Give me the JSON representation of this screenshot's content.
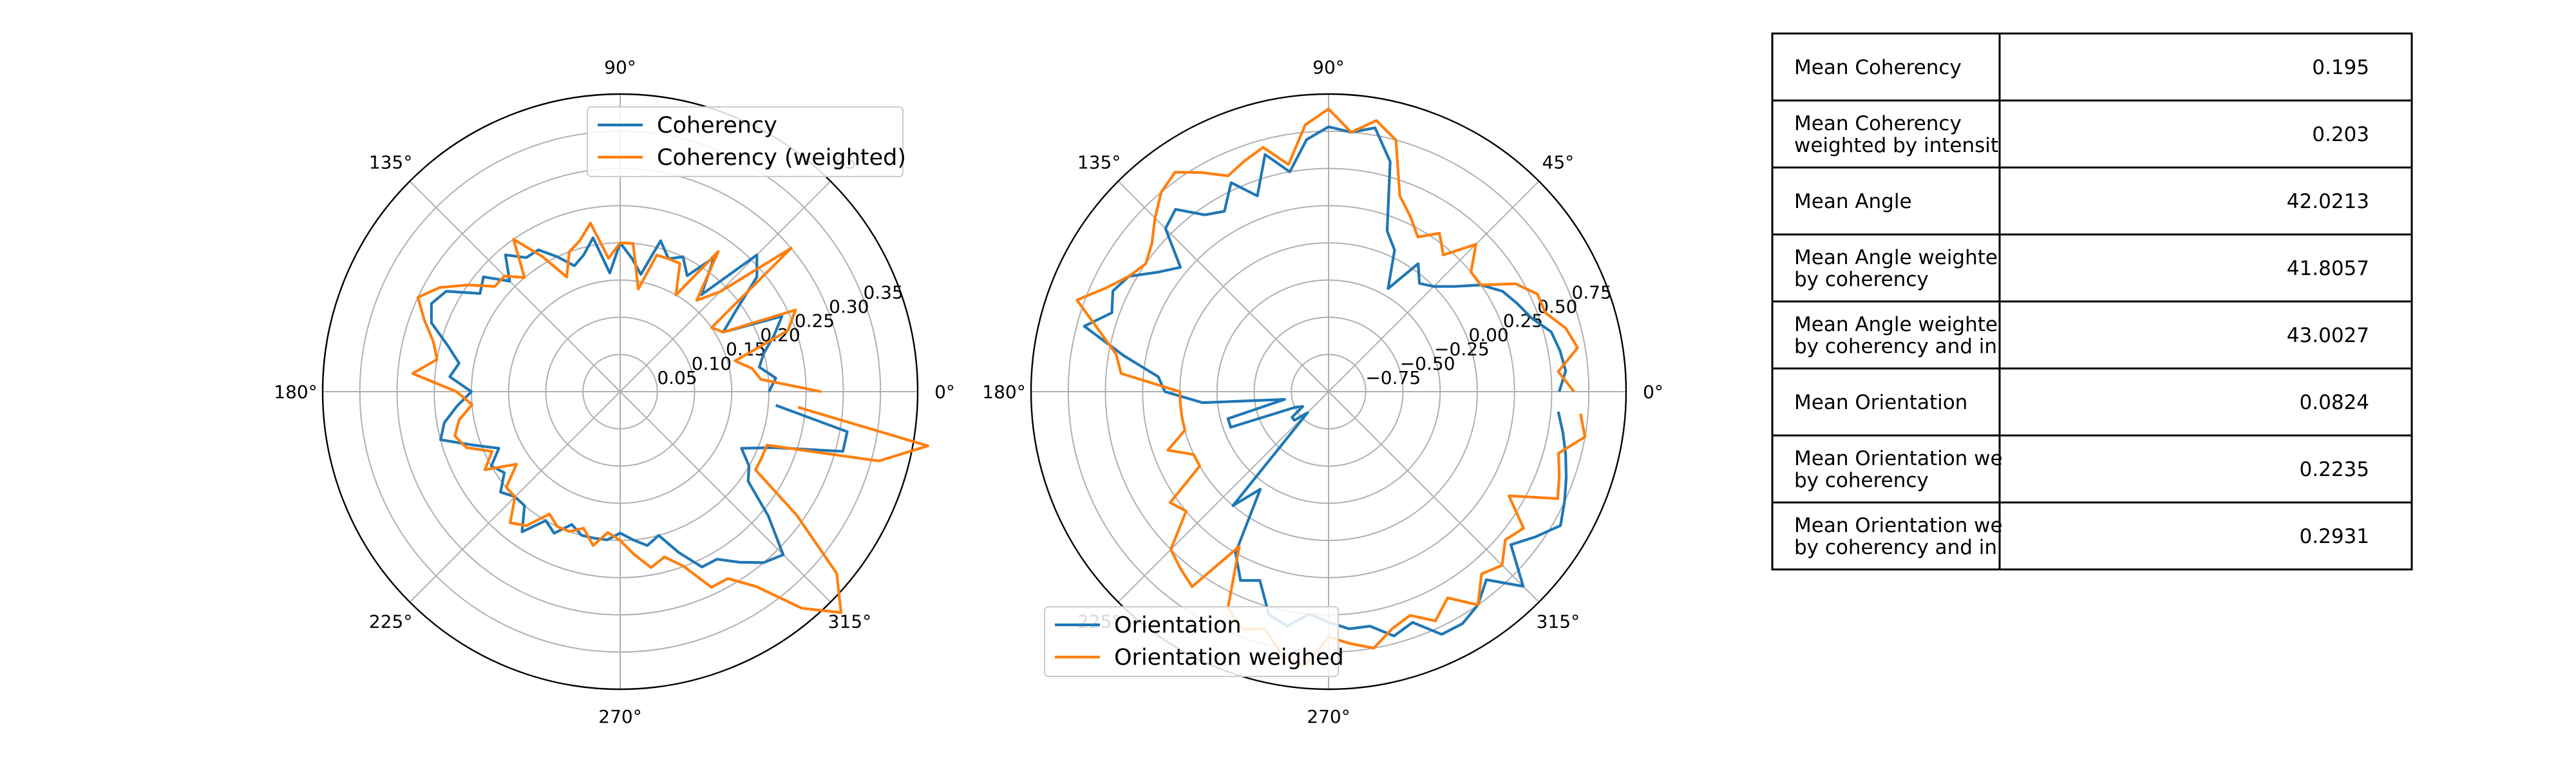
{
  "chart_data": [
    {
      "type": "polar-line",
      "theta_labels": [
        "0°",
        "45°",
        "90°",
        "135°",
        "180°",
        "225°",
        "270°",
        "315°"
      ],
      "theta_unit": "degrees",
      "rlim": [
        0,
        0.4
      ],
      "r_ticks": [
        "0.05",
        "0.10",
        "0.15",
        "0.20",
        "0.25",
        "0.30",
        "0.35"
      ],
      "r_tick_values": [
        0.05,
        0.1,
        0.15,
        0.2,
        0.25,
        0.3,
        0.35
      ],
      "grid": true,
      "legend": "top-right",
      "series": [
        {
          "name": "Coherency",
          "color": "#1f77b4",
          "theta": [
            0,
            5,
            10,
            15,
            20,
            25,
            30,
            35,
            40,
            45,
            50,
            55,
            60,
            65,
            70,
            75,
            80,
            85,
            90,
            95,
            100,
            105,
            110,
            115,
            120,
            125,
            130,
            135,
            140,
            145,
            150,
            155,
            160,
            165,
            170,
            175,
            180,
            185,
            190,
            195,
            200,
            205,
            210,
            215,
            220,
            225,
            230,
            235,
            240,
            245,
            250,
            255,
            260,
            265,
            270,
            275,
            280,
            285,
            290,
            295,
            300,
            305,
            310,
            315,
            320,
            325,
            330,
            335,
            340,
            345,
            350,
            355
          ],
          "r": [
            0.2,
            0.21,
            0.19,
            0.2,
            0.22,
            0.24,
            0.16,
            0.19,
            0.24,
            0.26,
            0.17,
            0.22,
            0.18,
            0.2,
            0.19,
            0.21,
            0.16,
            0.18,
            0.2,
            0.16,
            0.21,
            0.19,
            0.18,
            0.2,
            0.22,
            0.22,
            0.24,
            0.21,
            0.24,
            0.23,
            0.27,
            0.28,
            0.27,
            0.24,
            0.22,
            0.23,
            0.2,
            0.22,
            0.24,
            0.25,
            0.21,
            0.18,
            0.2,
            0.19,
            0.21,
            0.2,
            0.2,
            0.23,
            0.2,
            0.21,
            0.19,
            0.2,
            0.2,
            0.2,
            0.19,
            0.2,
            0.21,
            0.2,
            0.23,
            0.26,
            0.26,
            0.28,
            0.3,
            0.31,
            0.26,
            0.21,
            0.2,
            0.18,
            0.22,
            0.31,
            0.31,
            0.21
          ]
        },
        {
          "name": "Coherency (weighted)",
          "color": "#ff7f0e",
          "theta": [
            0,
            5,
            10,
            15,
            20,
            25,
            30,
            35,
            40,
            45,
            50,
            55,
            60,
            65,
            70,
            75,
            80,
            85,
            90,
            95,
            100,
            105,
            110,
            115,
            120,
            125,
            130,
            135,
            140,
            145,
            150,
            155,
            160,
            165,
            170,
            175,
            180,
            185,
            190,
            195,
            200,
            205,
            210,
            215,
            220,
            225,
            230,
            235,
            240,
            245,
            250,
            255,
            260,
            265,
            270,
            275,
            280,
            285,
            290,
            295,
            300,
            305,
            310,
            315,
            320,
            325,
            330,
            335,
            340,
            345,
            350,
            355
          ],
          "r": [
            0.27,
            0.19,
            0.18,
            0.16,
            0.24,
            0.26,
            0.16,
            0.15,
            0.3,
            0.19,
            0.16,
            0.23,
            0.15,
            0.19,
            0.19,
            0.19,
            0.14,
            0.2,
            0.2,
            0.18,
            0.23,
            0.21,
            0.2,
            0.17,
            0.21,
            0.25,
            0.2,
            0.22,
            0.22,
            0.25,
            0.28,
            0.3,
            0.28,
            0.26,
            0.25,
            0.28,
            0.22,
            0.2,
            0.22,
            0.23,
            0.22,
            0.19,
            0.21,
            0.17,
            0.2,
            0.2,
            0.23,
            0.22,
            0.19,
            0.2,
            0.2,
            0.19,
            0.21,
            0.19,
            0.2,
            0.22,
            0.24,
            0.23,
            0.25,
            0.29,
            0.29,
            0.32,
            0.38,
            0.42,
            0.38,
            0.29,
            0.21,
            0.21,
            0.21,
            0.36,
            0.42,
            0.24
          ]
        }
      ]
    },
    {
      "type": "polar-line",
      "theta_labels": [
        "0°",
        "45°",
        "90°",
        "135°",
        "180°",
        "225°",
        "270°",
        "315°"
      ],
      "theta_unit": "degrees",
      "rlim": [
        -1.0,
        1.0
      ],
      "r_ticks": [
        "−0.75",
        "−0.50",
        "−0.25",
        "0.00",
        "0.25",
        "0.50",
        "0.75"
      ],
      "r_tick_values": [
        -0.75,
        -0.5,
        -0.25,
        0.0,
        0.25,
        0.5,
        0.75
      ],
      "grid": true,
      "legend": "lower-left",
      "series": [
        {
          "name": "Orientation",
          "color": "#1f77b4",
          "theta": [
            0,
            5,
            10,
            15,
            20,
            25,
            30,
            35,
            40,
            45,
            50,
            55,
            60,
            65,
            70,
            75,
            80,
            85,
            90,
            95,
            100,
            105,
            110,
            115,
            120,
            125,
            130,
            135,
            140,
            145,
            150,
            155,
            160,
            165,
            170,
            175,
            180,
            185,
            190,
            195,
            200,
            205,
            210,
            215,
            220,
            225,
            230,
            235,
            240,
            245,
            250,
            255,
            260,
            265,
            270,
            275,
            280,
            285,
            290,
            295,
            300,
            305,
            310,
            315,
            320,
            325,
            330,
            335,
            340,
            345,
            350,
            355
          ],
          "r": [
            0.55,
            0.6,
            0.58,
            0.55,
            0.45,
            0.4,
            0.35,
            0.25,
            0.1,
            0.0,
            -0.05,
            0.05,
            -0.2,
            0.05,
            0.15,
            0.6,
            0.8,
            0.75,
            0.78,
            0.7,
            0.5,
            0.65,
            0.4,
            0.55,
            0.4,
            0.45,
            0.6,
            0.55,
            0.3,
            0.4,
            0.55,
            0.6,
            0.55,
            0.7,
            0.4,
            0.15,
            0.1,
            -0.15,
            -0.7,
            -0.3,
            -0.3,
            -0.75,
            -0.8,
            -0.7,
            -0.7,
            -0.8,
            0.0,
            -0.2,
            0.25,
            0.4,
            0.35,
            0.55,
            0.6,
            0.5,
            0.55,
            0.6,
            0.6,
            0.7,
            0.65,
            0.8,
            0.8,
            0.75,
            0.65,
            0.85,
            0.6,
            0.7,
            0.8,
            0.75,
            0.7,
            0.65,
            0.6,
            0.55
          ]
        },
        {
          "name": "Orientation weighed",
          "color": "#ff7f0e",
          "theta": [
            0,
            5,
            10,
            15,
            20,
            25,
            30,
            35,
            40,
            45,
            50,
            55,
            60,
            65,
            70,
            75,
            80,
            85,
            90,
            95,
            100,
            105,
            110,
            115,
            120,
            125,
            130,
            135,
            140,
            145,
            150,
            155,
            160,
            165,
            170,
            175,
            180,
            185,
            190,
            195,
            200,
            205,
            210,
            215,
            220,
            225,
            230,
            235,
            240,
            245,
            250,
            255,
            260,
            265,
            270,
            275,
            280,
            285,
            290,
            295,
            300,
            305,
            310,
            315,
            320,
            325,
            330,
            335,
            340,
            345,
            350,
            355
          ],
          "r": [
            0.65,
            0.55,
            0.7,
            0.65,
            0.55,
            0.55,
            0.45,
            0.25,
            0.25,
            0.4,
            0.2,
            0.3,
            0.2,
            0.3,
            0.4,
            0.75,
            0.85,
            0.75,
            0.9,
            0.8,
            0.55,
            0.7,
            0.65,
            0.6,
            0.7,
            0.8,
            0.75,
            0.65,
            0.55,
            0.5,
            0.55,
            0.65,
            0.8,
            0.6,
            0.45,
            0.4,
            0.0,
            0.0,
            0.0,
            0.0,
            0.15,
            0.0,
            0.0,
            0.3,
            0.25,
            0.5,
            0.55,
            0.6,
            0.2,
            0.6,
            0.7,
            0.65,
            0.8,
            0.85,
            0.65,
            0.7,
            0.75,
            0.65,
            0.6,
            0.7,
            0.6,
            0.75,
            0.6,
            0.65,
            0.55,
            0.6,
            0.4,
            0.7,
            0.65,
            0.6,
            0.75,
            0.7
          ]
        }
      ]
    },
    {
      "type": "table",
      "rows": [
        {
          "label": [
            "Mean Coherency"
          ],
          "value": "0.195"
        },
        {
          "label": [
            "Mean Coherency",
            "weighted by intensit"
          ],
          "value": "0.203"
        },
        {
          "label": [
            "Mean Angle"
          ],
          "value": "42.0213"
        },
        {
          "label": [
            "Mean Angle weighte",
            "by coherency"
          ],
          "value": "41.8057"
        },
        {
          "label": [
            "Mean Angle weighte",
            "by coherency and in"
          ],
          "value": "43.0027"
        },
        {
          "label": [
            "Mean Orientation"
          ],
          "value": "0.0824"
        },
        {
          "label": [
            "Mean Orientation we",
            "by coherency"
          ],
          "value": "0.2235"
        },
        {
          "label": [
            "Mean Orientation we",
            "by coherency and in"
          ],
          "value": "0.2931"
        }
      ]
    }
  ]
}
